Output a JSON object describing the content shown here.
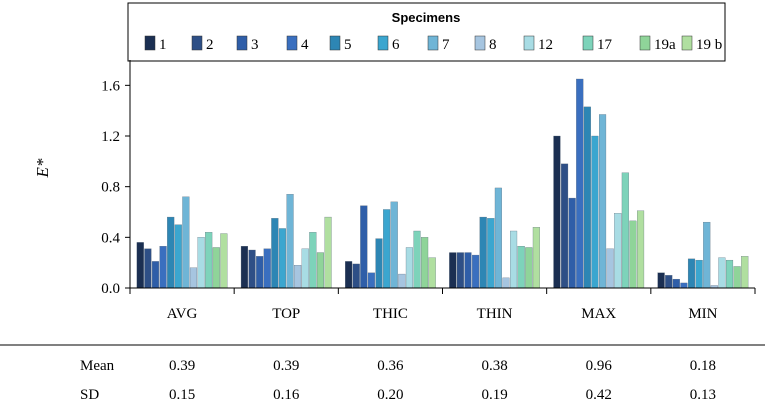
{
  "chart_data": {
    "type": "bar",
    "ylabel": "E*",
    "ylim": [
      0,
      1.8
    ],
    "yticks": [
      "0.0",
      "0.4",
      "0.8",
      "1.2",
      "1.6"
    ],
    "ytick_values": [
      0,
      0.4,
      0.8,
      1.2,
      1.6
    ],
    "grid": false,
    "legend_title": "Specimens",
    "legend_position": "top-center",
    "categories": [
      "AVG",
      "TOP",
      "THIC",
      "THIN",
      "MAX",
      "MIN"
    ],
    "series": [
      {
        "name": "1",
        "color": "#1b2f52",
        "values": [
          0.36,
          0.33,
          0.21,
          0.28,
          1.2,
          0.12
        ]
      },
      {
        "name": "2",
        "color": "#2e4f86",
        "values": [
          0.31,
          0.3,
          0.19,
          0.28,
          0.98,
          0.1
        ]
      },
      {
        "name": "3",
        "color": "#2f5ea8",
        "values": [
          0.21,
          0.25,
          0.65,
          0.28,
          0.71,
          0.07
        ]
      },
      {
        "name": "4",
        "color": "#3a6fbf",
        "values": [
          0.33,
          0.31,
          0.12,
          0.26,
          1.65,
          0.04
        ]
      },
      {
        "name": "5",
        "color": "#2d86b4",
        "values": [
          0.56,
          0.55,
          0.39,
          0.56,
          1.43,
          0.23
        ]
      },
      {
        "name": "6",
        "color": "#3ba6cf",
        "values": [
          0.5,
          0.47,
          0.62,
          0.55,
          1.2,
          0.22
        ]
      },
      {
        "name": "7",
        "color": "#6fb5d6",
        "values": [
          0.72,
          0.74,
          0.68,
          0.79,
          1.37,
          0.52
        ]
      },
      {
        "name": "8",
        "color": "#a6c5e0",
        "values": [
          0.16,
          0.18,
          0.11,
          0.08,
          0.31,
          0.02
        ]
      },
      {
        "name": "12",
        "color": "#a8dce4",
        "values": [
          0.4,
          0.31,
          0.32,
          0.45,
          0.59,
          0.24
        ]
      },
      {
        "name": "17",
        "color": "#7dd3ba",
        "values": [
          0.44,
          0.44,
          0.45,
          0.33,
          0.91,
          0.22
        ]
      },
      {
        "name": "19a",
        "color": "#8fd499",
        "values": [
          0.32,
          0.28,
          0.4,
          0.32,
          0.53,
          0.17
        ]
      },
      {
        "name": "19 b",
        "color": "#b0dfa0",
        "values": [
          0.43,
          0.56,
          0.24,
          0.48,
          0.61,
          0.25
        ]
      }
    ],
    "summary_table": {
      "rows": [
        {
          "label": "Mean",
          "values": [
            "0.39",
            "0.39",
            "0.36",
            "0.38",
            "0.96",
            "0.18"
          ]
        },
        {
          "label": "SD",
          "values": [
            "0.15",
            "0.16",
            "0.20",
            "0.19",
            "0.42",
            "0.13"
          ]
        }
      ]
    }
  }
}
